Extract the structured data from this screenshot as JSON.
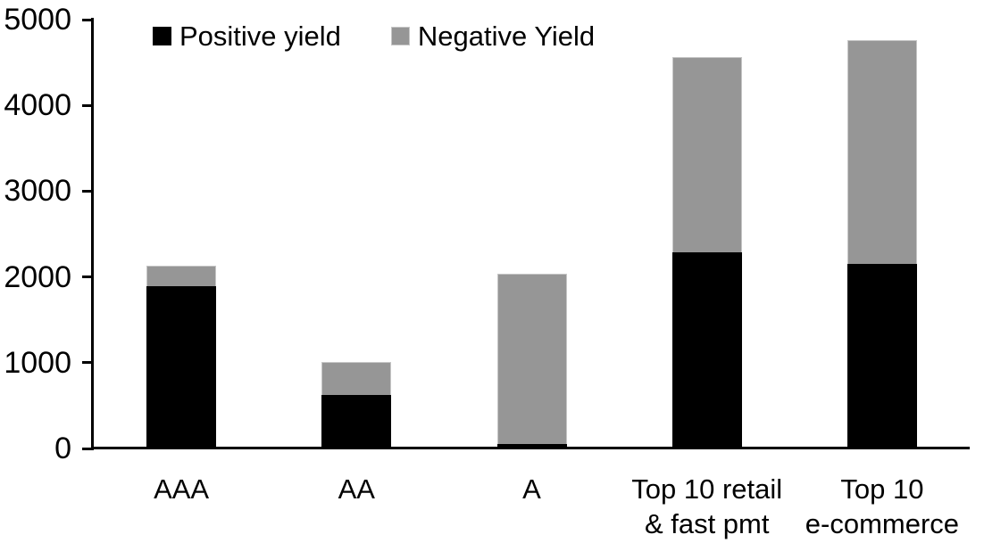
{
  "chart_data": {
    "type": "bar",
    "stacked": true,
    "title": "",
    "xlabel": "",
    "ylabel": "",
    "categories": [
      "AAA",
      "AA",
      "A",
      "Top 10 retail\n& fast pmt",
      "Top 10\ne-commerce"
    ],
    "series": [
      {
        "name": "Positive yield",
        "color": "#000000",
        "values": [
          1890,
          620,
          50,
          2290,
          2150
        ]
      },
      {
        "name": "Negative Yield",
        "color": "#969696",
        "values": [
          240,
          385,
          1985,
          2275,
          2610
        ]
      }
    ],
    "totals": [
      2130,
      1005,
      2035,
      4565,
      4760
    ],
    "ylim": [
      0,
      5000
    ],
    "yticks": [
      0,
      1000,
      2000,
      3000,
      4000,
      5000
    ],
    "grid": false,
    "legend_position": "top-left-inside"
  },
  "colors": {
    "positive": "#000000",
    "negative": "#969696",
    "axis": "#000000",
    "background": "#ffffff"
  }
}
